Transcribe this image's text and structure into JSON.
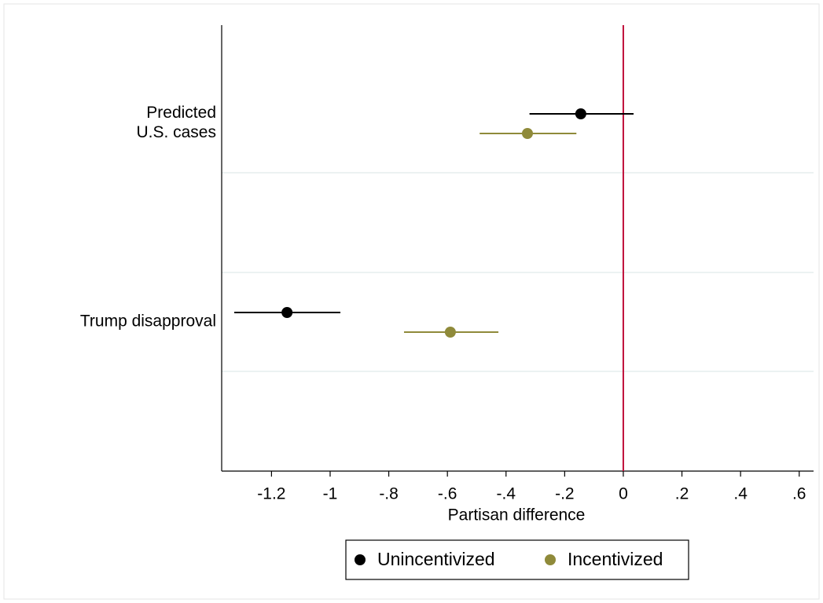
{
  "chart_data": {
    "type": "coefplot",
    "xlabel": "Partisan difference",
    "categories": [
      [
        "Predicted",
        "U.S. cases"
      ],
      [
        "Trump disapproval"
      ]
    ],
    "series": [
      {
        "name": "Unincentivized",
        "color": "#000000",
        "values": [
          -0.145,
          -1.147
        ],
        "ci_low": [
          -0.32,
          -1.327
        ],
        "ci_high": [
          0.035,
          -0.965
        ]
      },
      {
        "name": "Incentivized",
        "color": "#8f8a3a",
        "values": [
          -0.327,
          -0.59
        ],
        "ci_low": [
          -0.49,
          -0.748
        ],
        "ci_high": [
          -0.16,
          -0.426
        ]
      }
    ],
    "xlim": [
      -1.37,
      0.649
    ],
    "xticks": [
      -1.2,
      -1,
      {
        "value": -0.8,
        "label": "-.8"
      },
      {
        "value": -0.6,
        "label": "-.6"
      },
      {
        "value": -0.4,
        "label": "-.4"
      },
      {
        "value": -0.2,
        "label": "-.2"
      },
      0,
      {
        "value": 0.2,
        "label": ".2"
      },
      {
        "value": 0.4,
        "label": ".4"
      },
      {
        "value": 0.6,
        "label": ".6"
      }
    ],
    "reference_line": {
      "value": 0,
      "color": "#c0103a"
    },
    "legend": "bottom"
  }
}
